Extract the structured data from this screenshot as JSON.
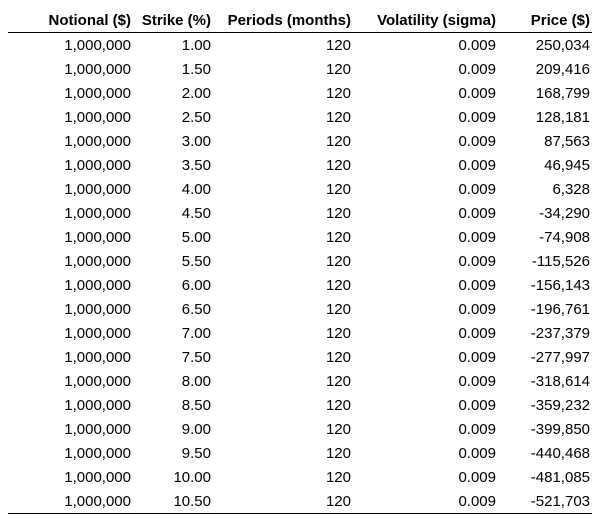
{
  "table": {
    "headers": [
      "Notional ($)",
      "Strike (%)",
      "Periods (months)",
      "Volatility (sigma)",
      "Price ($)"
    ],
    "rows": [
      [
        "1,000,000",
        "1.00",
        "120",
        "0.009",
        "250,034"
      ],
      [
        "1,000,000",
        "1.50",
        "120",
        "0.009",
        "209,416"
      ],
      [
        "1,000,000",
        "2.00",
        "120",
        "0.009",
        "168,799"
      ],
      [
        "1,000,000",
        "2.50",
        "120",
        "0.009",
        "128,181"
      ],
      [
        "1,000,000",
        "3.00",
        "120",
        "0.009",
        "87,563"
      ],
      [
        "1,000,000",
        "3.50",
        "120",
        "0.009",
        "46,945"
      ],
      [
        "1,000,000",
        "4.00",
        "120",
        "0.009",
        "6,328"
      ],
      [
        "1,000,000",
        "4.50",
        "120",
        "0.009",
        "-34,290"
      ],
      [
        "1,000,000",
        "5.00",
        "120",
        "0.009",
        "-74,908"
      ],
      [
        "1,000,000",
        "5.50",
        "120",
        "0.009",
        "-115,526"
      ],
      [
        "1,000,000",
        "6.00",
        "120",
        "0.009",
        "-156,143"
      ],
      [
        "1,000,000",
        "6.50",
        "120",
        "0.009",
        "-196,761"
      ],
      [
        "1,000,000",
        "7.00",
        "120",
        "0.009",
        "-237,379"
      ],
      [
        "1,000,000",
        "7.50",
        "120",
        "0.009",
        "-277,997"
      ],
      [
        "1,000,000",
        "8.00",
        "120",
        "0.009",
        "-318,614"
      ],
      [
        "1,000,000",
        "8.50",
        "120",
        "0.009",
        "-359,232"
      ],
      [
        "1,000,000",
        "9.00",
        "120",
        "0.009",
        "-399,850"
      ],
      [
        "1,000,000",
        "9.50",
        "120",
        "0.009",
        "-440,468"
      ],
      [
        "1,000,000",
        "10.00",
        "120",
        "0.009",
        "-481,085"
      ],
      [
        "1,000,000",
        "10.50",
        "120",
        "0.009",
        "-521,703"
      ]
    ]
  }
}
